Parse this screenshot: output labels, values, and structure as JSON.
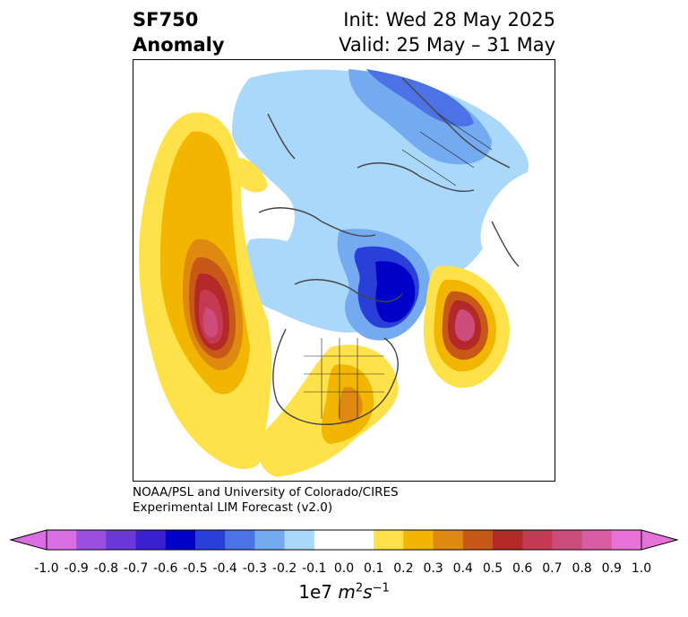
{
  "title": {
    "variable": "SF750",
    "subtitle": "Anomaly",
    "init": "Init: Wed 28 May 2025",
    "valid": "Valid: 25 May – 31 May"
  },
  "credit": {
    "line1": "NOAA/PSL and University of Colorado/CIRES",
    "line2": "Experimental LIM Forecast (v2.0)"
  },
  "colorbar": {
    "ticks": [
      "-1.0",
      "-0.9",
      "-0.8",
      "-0.7",
      "-0.6",
      "-0.5",
      "-0.4",
      "-0.3",
      "-0.2",
      "-0.1",
      "0.0",
      "0.1",
      "0.2",
      "0.3",
      "0.4",
      "0.5",
      "0.6",
      "0.7",
      "0.8",
      "0.9",
      "1.0"
    ],
    "colors": [
      "#9b4fe0",
      "#6a38d8",
      "#3a1fd0",
      "#0000c8",
      "#2a3fd8",
      "#4d72e6",
      "#74aaf0",
      "#aad8fa",
      "#ffffff",
      "#ffffff",
      "#ffe24a",
      "#f2b600",
      "#de8a10",
      "#c85818",
      "#b42828",
      "#c43a52",
      "#cc4c7c",
      "#d85ca4"
    ],
    "extend_low": "#d96ee3",
    "extend_high": "#e672d8",
    "label_base": "1e7 ",
    "label_units": "m",
    "label_exp1": "2",
    "label_s": "s",
    "label_exp2": "−1"
  }
}
